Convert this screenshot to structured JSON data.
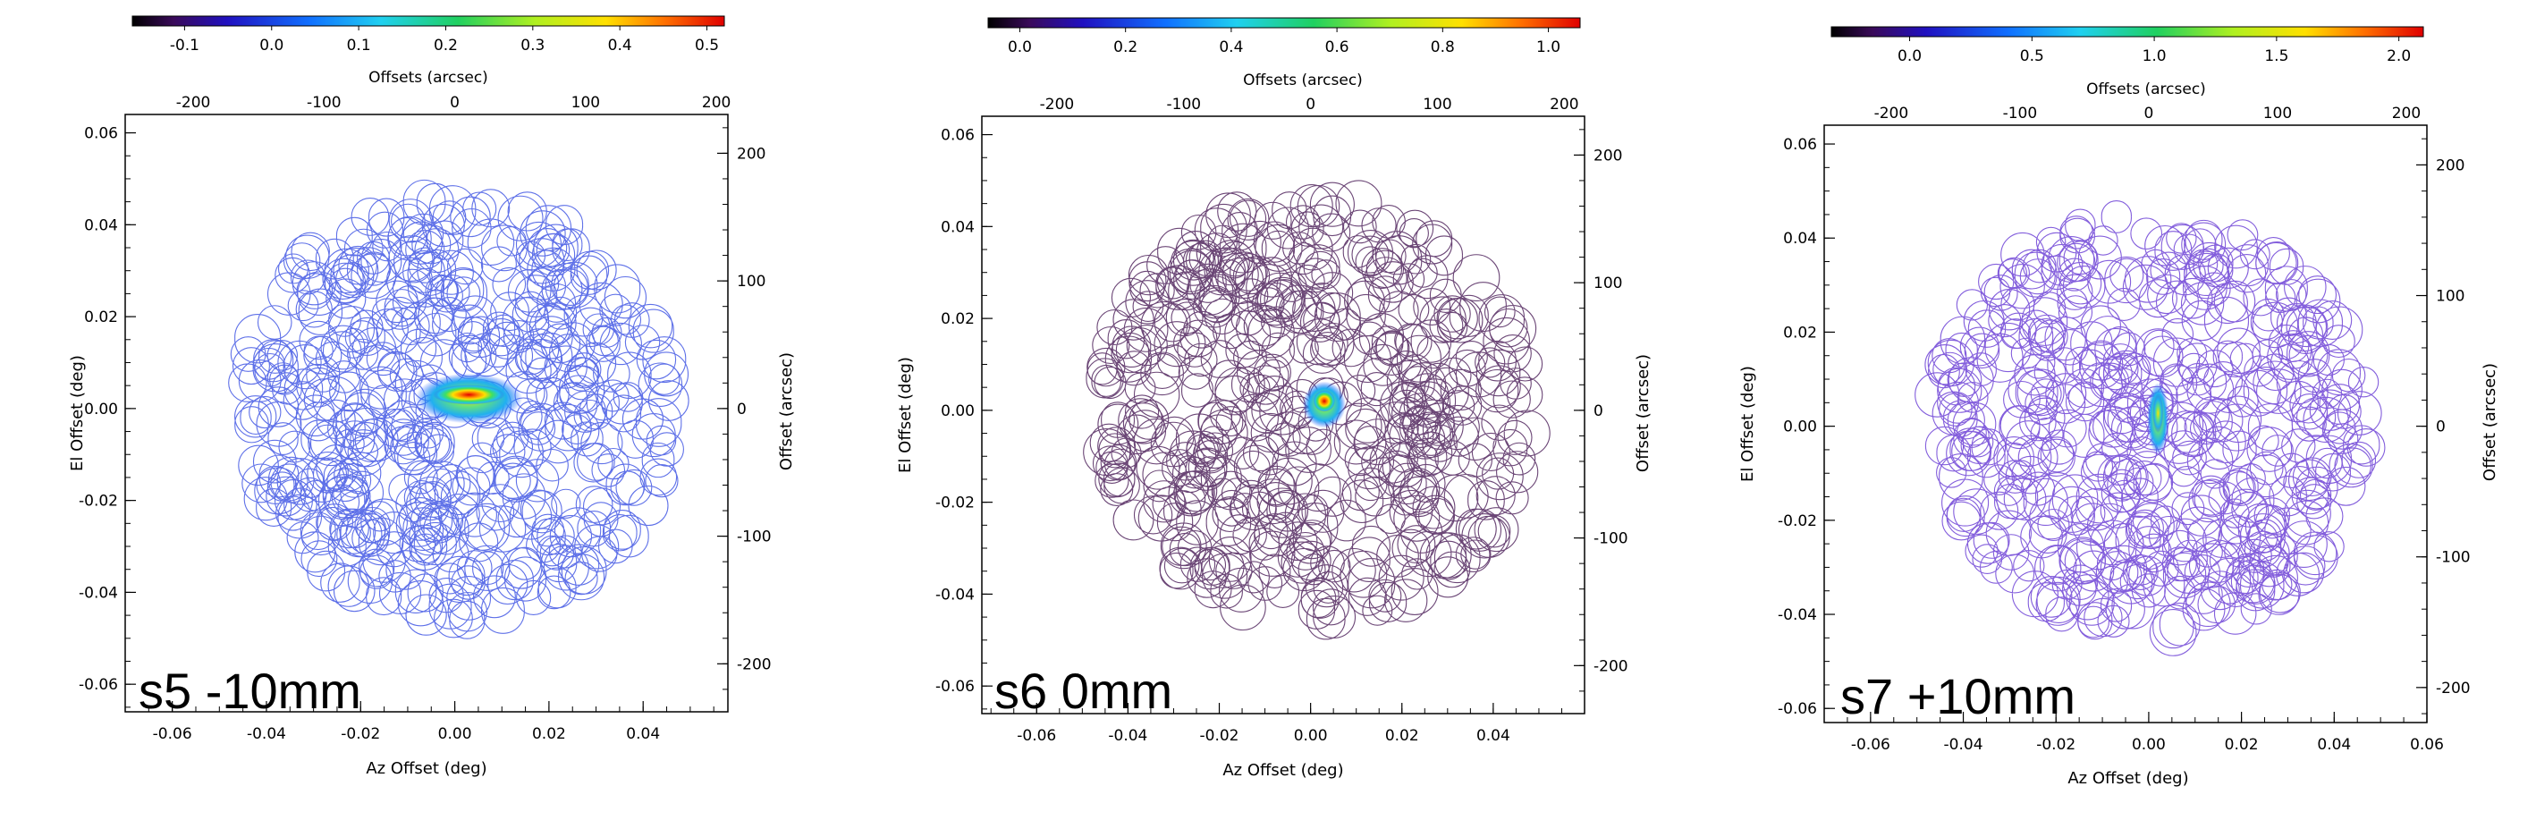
{
  "chart_data": [
    {
      "type": "heatmap",
      "caption": "s5 -10mm",
      "xlabel": "Az Offset (deg)",
      "ylabel": "El Offset (deg)",
      "top_label": "Offsets (arcsec)",
      "right_label": "Offset (arcsec)",
      "xlim": [
        -0.07,
        0.058
      ],
      "ylim": [
        -0.066,
        0.064
      ],
      "x_ticks": [
        "-0.06",
        "-0.04",
        "-0.02",
        "0.00",
        "0.02",
        "0.04"
      ],
      "y_ticks": [
        "-0.06",
        "-0.04",
        "-0.02",
        "0.00",
        "0.02",
        "0.04",
        "0.06"
      ],
      "top_ticks": [
        "-200",
        "-100",
        "0",
        "100",
        "200"
      ],
      "right_ticks": [
        "-200",
        "-100",
        "0",
        "100",
        "200"
      ],
      "colorbar": {
        "min": -0.16,
        "max": 0.52,
        "ticks": [
          "-0.1",
          "0.0",
          "0.1",
          "0.2",
          "0.3",
          "0.4",
          "0.5"
        ]
      },
      "coverage_color": "#2840e0",
      "peak": {
        "az": 0.003,
        "el": 0.003,
        "shape": "horizontal"
      }
    },
    {
      "type": "heatmap",
      "caption": "s6 0mm",
      "xlabel": "Az Offset (deg)",
      "ylabel": "El Offset (deg)",
      "top_label": "Offsets (arcsec)",
      "right_label": "Offset (arcsec)",
      "xlim": [
        -0.072,
        0.06
      ],
      "ylim": [
        -0.066,
        0.064
      ],
      "x_ticks": [
        "-0.06",
        "-0.04",
        "-0.02",
        "0.00",
        "0.02",
        "0.04"
      ],
      "y_ticks": [
        "-0.06",
        "-0.04",
        "-0.02",
        "0.00",
        "0.02",
        "0.04",
        "0.06"
      ],
      "top_ticks": [
        "-200",
        "-100",
        "0",
        "100",
        "200"
      ],
      "right_ticks": [
        "-200",
        "-100",
        "0",
        "100",
        "200"
      ],
      "colorbar": {
        "min": -0.06,
        "max": 1.06,
        "ticks": [
          "0.0",
          "0.2",
          "0.4",
          "0.6",
          "0.8",
          "1.0"
        ]
      },
      "coverage_color": "#3a0848",
      "peak": {
        "az": 0.003,
        "el": 0.002,
        "shape": "compact"
      }
    },
    {
      "type": "heatmap",
      "caption": "s7 +10mm",
      "xlabel": "Az Offset (deg)",
      "ylabel": "El Offset (deg)",
      "top_label": "Offsets (arcsec)",
      "right_label": "Offset (arcsec)",
      "xlim": [
        -0.07,
        0.06
      ],
      "ylim": [
        -0.063,
        0.064
      ],
      "x_ticks": [
        "-0.06",
        "-0.04",
        "-0.02",
        "0.00",
        "0.02",
        "0.04",
        "0.06"
      ],
      "y_ticks": [
        "-0.06",
        "-0.04",
        "-0.02",
        "0.00",
        "0.02",
        "0.04",
        "0.06"
      ],
      "top_ticks": [
        "-200",
        "-100",
        "0",
        "100",
        "200"
      ],
      "right_ticks": [
        "-200",
        "-100",
        "0",
        "100",
        "200"
      ],
      "colorbar": {
        "min": -0.32,
        "max": 2.1,
        "ticks": [
          "0.0",
          "0.5",
          "1.0",
          "1.5",
          "2.0"
        ]
      },
      "coverage_color": "#5a28d0",
      "peak": {
        "az": 0.002,
        "el": 0.002,
        "shape": "vertical"
      }
    }
  ]
}
